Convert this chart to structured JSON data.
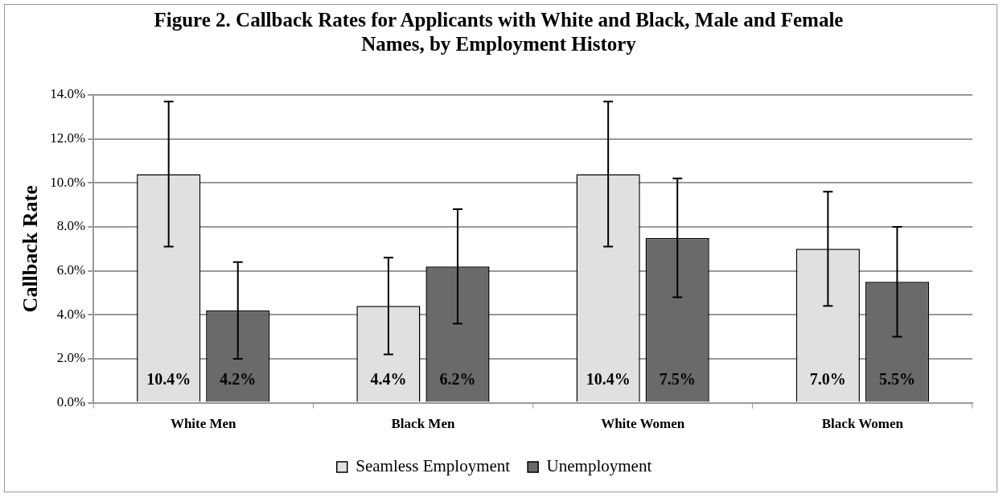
{
  "chart_data": {
    "type": "bar",
    "title": "Figure 2. Callback Rates for Applicants with White and Black, Male and Female Names, by Employment History",
    "ylabel": "Callback Rate",
    "categories": [
      "White Men",
      "Black Men",
      "White Women",
      "Black Women"
    ],
    "series": [
      {
        "name": "Seamless Employment",
        "color": "#e0e0e0",
        "values": [
          10.4,
          4.4,
          10.4,
          7.0
        ],
        "errors": [
          3.3,
          2.2,
          3.3,
          2.6
        ],
        "value_labels": [
          "10.4%",
          "4.4%",
          "10.4%",
          "7.0%"
        ]
      },
      {
        "name": "Unemployment",
        "color": "#6a6a6a",
        "values": [
          4.2,
          6.2,
          7.5,
          5.5
        ],
        "errors": [
          2.2,
          2.6,
          2.7,
          2.5
        ],
        "value_labels": [
          "4.2%",
          "6.2%",
          "7.5%",
          "5.5%"
        ]
      }
    ],
    "ylim": [
      0,
      14
    ],
    "yticks": [
      {
        "value": 0,
        "label": "0.0%"
      },
      {
        "value": 2,
        "label": "2.0%"
      },
      {
        "value": 4,
        "label": "4.0%"
      },
      {
        "value": 6,
        "label": "6.0%"
      },
      {
        "value": 8,
        "label": "8.0%"
      },
      {
        "value": 10,
        "label": "10.0%"
      },
      {
        "value": 12,
        "label": "12.0%"
      },
      {
        "value": 14,
        "label": "14.0%"
      }
    ],
    "grid": "y",
    "legend": "bottom"
  }
}
